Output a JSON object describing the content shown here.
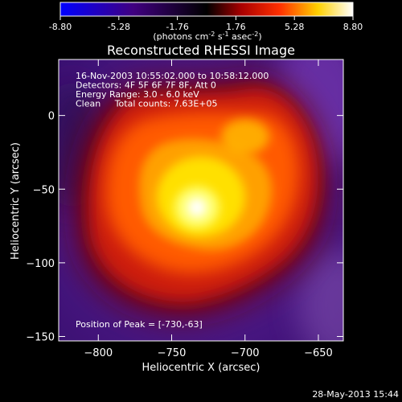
{
  "colorbar": {
    "ticks": [
      "-8.80",
      "-5.28",
      "-1.76",
      "1.76",
      "5.28",
      "8.80"
    ],
    "tick_values": [
      -8.8,
      -5.28,
      -1.76,
      1.76,
      5.28,
      8.8
    ],
    "range": [
      -8.8,
      8.8
    ],
    "unit_main": "(photons cm",
    "unit_exp1": "-2",
    "unit_mid": " s",
    "unit_exp2": "-1",
    "unit_mid2": " asec",
    "unit_exp3": "-2",
    "unit_end": ")"
  },
  "chart_data": {
    "type": "heatmap",
    "title": "Reconstructed RHESSI Image",
    "xlabel": "Heliocentric X (arcsec)",
    "ylabel": "Heliocentric Y (arcsec)",
    "xlim": [
      -827,
      -633
    ],
    "ylim": [
      -153,
      38
    ],
    "xticks": [
      -800,
      -750,
      -700,
      -650
    ],
    "yticks": [
      -150,
      -100,
      -50,
      0
    ],
    "xtick_labels": [
      "−800",
      "−750",
      "−700",
      "−650"
    ],
    "ytick_labels": [
      "−150",
      "−100",
      "−50",
      "0"
    ],
    "colormap": [
      "#0000ff",
      "#000000",
      "#ff0000",
      "#ffff00",
      "#ffffff"
    ],
    "annotations": [
      "16-Nov-2003 10:55:02.000 to 10:58:12.000",
      "Detectors: 4F 5F 6F 7F 8F, Att 0",
      "Energy Range: 3.0 - 6.0 keV",
      "Clean     Total counts: 7.63E+05"
    ],
    "peak_label": "Position of Peak = [-730,-63]",
    "peak": [
      -730,
      -63
    ]
  },
  "footer": {
    "date": "28-May-2013 15:44"
  }
}
